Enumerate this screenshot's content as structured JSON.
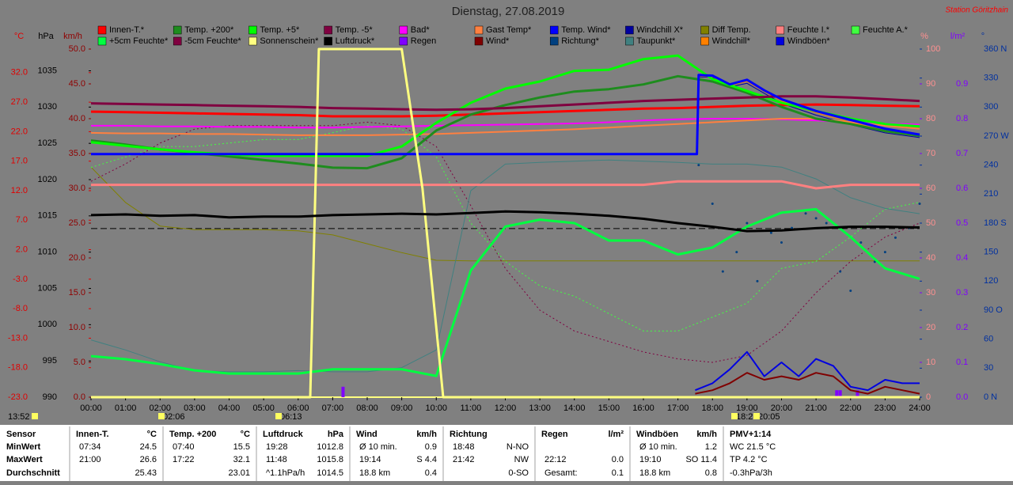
{
  "chart_data": {
    "type": "line",
    "title": "Dienstag, 27.08.2019",
    "station": "Station Göritzhain",
    "x": [
      0,
      1,
      2,
      3,
      4,
      5,
      6,
      7,
      8,
      9,
      10,
      11,
      12,
      13,
      14,
      15,
      16,
      17,
      18,
      19,
      20,
      21,
      22,
      23,
      24
    ],
    "xlim": [
      0,
      24
    ],
    "xticks": [
      {
        "value": 0,
        "label": "00:00"
      },
      {
        "value": 1,
        "label": "01:00"
      },
      {
        "value": 2,
        "label": "02:00"
      },
      {
        "value": 3,
        "label": "03:00"
      },
      {
        "value": 4,
        "label": "04:00"
      },
      {
        "value": 5,
        "label": "05:00"
      },
      {
        "value": 6,
        "label": "06:00"
      },
      {
        "value": 7,
        "label": "07:00"
      },
      {
        "value": 8,
        "label": "08:00"
      },
      {
        "value": 9,
        "label": "09:00"
      },
      {
        "value": 10,
        "label": "10:00"
      },
      {
        "value": 11,
        "label": "11:00"
      },
      {
        "value": 12,
        "label": "12:00"
      },
      {
        "value": 13,
        "label": "13:00"
      },
      {
        "value": 14,
        "label": "14:00"
      },
      {
        "value": 15,
        "label": "15:00"
      },
      {
        "value": 16,
        "label": "16:00"
      },
      {
        "value": 17,
        "label": "17:00"
      },
      {
        "value": 18,
        "label": "18:00"
      },
      {
        "value": 19,
        "label": "19:00"
      },
      {
        "value": 20,
        "label": "20:00"
      },
      {
        "value": 21,
        "label": "21:00"
      },
      {
        "value": 22,
        "label": "22:00"
      },
      {
        "value": 23,
        "label": "23:00"
      },
      {
        "value": 24,
        "label": "24:00"
      }
    ],
    "axes": [
      {
        "unit": "°C",
        "color": "#e00000",
        "lim": [
          -23,
          36
        ],
        "ticks": [
          {
            "value": -23,
            "label": "-23.0"
          },
          {
            "value": -18,
            "label": "-18.0"
          },
          {
            "value": -13,
            "label": "-13.0"
          },
          {
            "value": -8,
            "label": "-8.0"
          },
          {
            "value": -3,
            "label": "-3.0"
          },
          {
            "value": 2,
            "label": "2.0"
          },
          {
            "value": 7,
            "label": "7.0"
          },
          {
            "value": 12,
            "label": "12.0"
          },
          {
            "value": 17,
            "label": "17.0"
          },
          {
            "value": 22,
            "label": "22.0"
          },
          {
            "value": 27,
            "label": "27.0"
          },
          {
            "value": 32,
            "label": "32.0"
          }
        ]
      },
      {
        "unit": "hPa",
        "color": "#000000",
        "lim": [
          990,
          1038
        ],
        "ticks": [
          990,
          995,
          1000,
          1005,
          1010,
          1015,
          1020,
          1025,
          1030,
          1035
        ]
      },
      {
        "unit": "km/h",
        "color": "#900000",
        "lim": [
          0,
          50
        ],
        "ticks": [
          {
            "value": 0,
            "label": "0.0"
          },
          {
            "value": 5,
            "label": "5.0"
          },
          {
            "value": 10,
            "label": "10.0"
          },
          {
            "value": 15,
            "label": "15.0"
          },
          {
            "value": 20,
            "label": "20.0"
          },
          {
            "value": 25,
            "label": "25.0"
          },
          {
            "value": 30,
            "label": "30.0"
          },
          {
            "value": 35,
            "label": "35.0"
          },
          {
            "value": 40,
            "label": "40.0"
          },
          {
            "value": 45,
            "label": "45.0"
          },
          {
            "value": 50,
            "label": "50.0"
          }
        ]
      },
      {
        "unit": "%",
        "color": "#ff9090",
        "lim": [
          0,
          100
        ],
        "ticks": [
          0,
          10,
          20,
          30,
          40,
          50,
          60,
          70,
          80,
          90,
          100
        ]
      },
      {
        "unit": "l/m²",
        "color": "#8000ff",
        "lim": [
          0,
          1
        ],
        "ticks": [
          {
            "value": 0,
            "label": "0.0"
          },
          0.1,
          0.2,
          0.3,
          0.4,
          0.5,
          0.6,
          0.7,
          0.8,
          0.9
        ]
      },
      {
        "unit": "°",
        "color": "#0030a0",
        "lim": [
          0,
          360
        ],
        "ticks": [
          {
            "value": 0,
            "label": "0 N"
          },
          30,
          60,
          {
            "value": 90,
            "label": "90 O"
          },
          120,
          150,
          {
            "value": 180,
            "label": "180 S"
          },
          210,
          240,
          {
            "value": 270,
            "label": "270 W"
          },
          300,
          330,
          {
            "value": 360,
            "label": "360 N"
          }
        ]
      }
    ],
    "pressure_reference": 1013.25,
    "series": [
      {
        "name": "Innen-T.*",
        "color": "#ff0000",
        "axis": 0,
        "width": 3,
        "values": [
          25.4,
          25.3,
          25.2,
          25.1,
          25.0,
          24.9,
          24.8,
          24.6,
          24.6,
          24.6,
          24.7,
          24.9,
          25.1,
          25.3,
          25.5,
          25.7,
          25.9,
          26.0,
          26.2,
          26.4,
          26.5,
          26.6,
          26.5,
          26.4,
          26.3
        ]
      },
      {
        "name": "Temp. +200*",
        "color": "#1e8c1e",
        "axis": 0,
        "width": 3,
        "values": [
          20.5,
          19.8,
          19.0,
          18.4,
          17.8,
          17.2,
          16.6,
          15.9,
          15.8,
          17.5,
          22.2,
          24.9,
          26.5,
          27.8,
          28.8,
          29.2,
          30.0,
          31.4,
          30.5,
          28.6,
          26.2,
          24.2,
          23.3,
          22.1,
          21.3
        ]
      },
      {
        "name": "Temp. +5*",
        "color": "#00ff00",
        "axis": 0,
        "width": 3,
        "values": [
          20.2,
          19.6,
          19.0,
          18.5,
          18.1,
          17.9,
          17.9,
          17.9,
          17.9,
          19.5,
          23.5,
          26.9,
          29.3,
          30.5,
          32.3,
          32.5,
          34.3,
          34.9,
          30.9,
          28.9,
          26.9,
          25.5,
          24.2,
          23.3,
          22.9
        ]
      },
      {
        "name": "Temp. -5*",
        "color": "#800040",
        "axis": 0,
        "width": 3,
        "values": [
          26.8,
          26.7,
          26.6,
          26.5,
          26.4,
          26.3,
          26.2,
          26.0,
          25.9,
          25.8,
          25.7,
          25.8,
          26.0,
          26.3,
          26.6,
          26.9,
          27.2,
          27.4,
          27.6,
          27.8,
          28.0,
          28.0,
          27.8,
          27.5,
          27.2
        ]
      },
      {
        "name": "Bad*",
        "color": "#ff00ff",
        "axis": 0,
        "width": 2,
        "values": [
          23.0,
          23.0,
          22.9,
          22.9,
          22.8,
          22.8,
          22.7,
          22.7,
          22.8,
          22.9,
          23.0,
          23.1,
          23.2,
          23.3,
          23.4,
          23.6,
          23.9,
          24.1,
          24.2,
          24.2,
          24.1,
          23.9,
          23.6,
          23.4,
          23.2
        ]
      },
      {
        "name": "Gast Temp*",
        "color": "#ff8040",
        "axis": 0,
        "width": 2,
        "values": [
          21.8,
          21.7,
          21.7,
          21.6,
          21.6,
          21.5,
          21.4,
          21.4,
          21.4,
          21.5,
          21.6,
          21.8,
          22.0,
          22.2,
          22.4,
          22.7,
          23.0,
          23.3,
          23.6,
          23.9,
          24.2,
          24.2,
          23.6,
          23.0,
          22.5
        ]
      },
      {
        "name": "Temp. Wind*",
        "color": "#0000ff",
        "axis": 0,
        "width": 3,
        "x": [
          0,
          17.55,
          17.6,
          18,
          18.5,
          19,
          19.5,
          20,
          21,
          22,
          23,
          24
        ],
        "values": [
          18.2,
          18.2,
          31.6,
          31.5,
          30.0,
          30.8,
          29.0,
          27.5,
          25.5,
          24.0,
          22.5,
          21.5
        ]
      },
      {
        "name": "Windchill X*",
        "color": "#0000a0",
        "axis": 0,
        "width": 1,
        "x": [
          0,
          17.55,
          17.6,
          18,
          18.5,
          19,
          19.5,
          20,
          21,
          22,
          23,
          24
        ],
        "values": [
          18.1,
          18.1,
          31.3,
          31.2,
          29.6,
          30.2,
          28.5,
          26.8,
          24.8,
          23.2,
          21.8,
          21.0
        ]
      },
      {
        "name": "Diff Temp.",
        "color": "#808000",
        "axis": 0,
        "width": 1,
        "values": [
          16,
          10,
          6,
          5.4,
          5.4,
          5.4,
          5.2,
          4.5,
          3.0,
          1.5,
          0.2,
          0.1,
          0.1,
          0.1,
          0.1,
          0.1,
          0.1,
          0.1,
          0.1,
          0.1,
          0.1,
          0.1,
          0.1,
          0.1,
          0.1
        ]
      },
      {
        "name": "Feuchte I.*",
        "color": "#ff8080",
        "axis": 3,
        "width": 3,
        "values": [
          61,
          61,
          61,
          61,
          61,
          61,
          61,
          61,
          61,
          61,
          61,
          61,
          61,
          61,
          61,
          61,
          61,
          62,
          62,
          62,
          62,
          60,
          61,
          61,
          61
        ]
      },
      {
        "name": "Feuchte A.*",
        "color": "#40ff40",
        "axis": 3,
        "width": 1,
        "style": "dotted",
        "values": [
          66,
          69,
          72,
          72,
          73,
          74,
          74,
          76,
          78,
          77,
          69,
          50,
          39,
          32,
          29,
          24,
          19,
          19,
          23,
          27,
          37,
          39,
          46,
          54,
          56
        ]
      },
      {
        "name": "+5cm Feuchte*",
        "color": "#00ff40",
        "axis": 3,
        "width": 3,
        "values": [
          11.8,
          10.9,
          9.5,
          7.7,
          6.8,
          6.8,
          6.8,
          8.0,
          8.0,
          8.0,
          6.1,
          36.4,
          49,
          51,
          50,
          45,
          45,
          41,
          43,
          49,
          53,
          54,
          46,
          37,
          34
        ]
      },
      {
        "name": "-5cm Feuchte*",
        "color": "#800040",
        "axis": 3,
        "width": 1,
        "style": "dotted",
        "values": [
          62,
          67,
          73,
          77,
          78,
          78,
          78,
          78,
          79,
          78,
          72,
          55,
          37,
          25,
          19,
          16,
          13,
          11,
          10,
          12,
          19,
          30,
          39,
          46,
          50
        ]
      },
      {
        "name": "Sonnenschein*",
        "color": "#ffff80",
        "axis": 3,
        "width": 3,
        "x": [
          0,
          6.35,
          6.6,
          9.0,
          9.6,
          10.2,
          24
        ],
        "values": [
          0,
          0,
          100,
          100,
          60,
          0,
          0
        ]
      },
      {
        "name": "Luftdruck*",
        "color": "#000000",
        "axis": 1,
        "width": 3,
        "values": [
          1015.1,
          1015.2,
          1015.0,
          1015.1,
          1014.8,
          1014.9,
          1014.9,
          1015.1,
          1015.2,
          1015.3,
          1015.2,
          1015.4,
          1015.6,
          1015.5,
          1015.3,
          1015.0,
          1014.6,
          1014.0,
          1013.5,
          1012.9,
          1013.0,
          1013.3,
          1013.5,
          1013.5,
          1013.4
        ]
      },
      {
        "name": "Regen",
        "color": "#8000ff",
        "axis": 4,
        "style": "bars",
        "x": [
          7.3,
          21.6,
          21.7,
          22.2
        ],
        "values": [
          0.03,
          0.02,
          0.02,
          0.02
        ]
      },
      {
        "name": "Wind*",
        "color": "#800000",
        "axis": 2,
        "width": 2,
        "x": [
          17.5,
          18,
          18.5,
          19,
          19.5,
          20,
          20.5,
          21,
          21.5,
          22,
          22.5,
          23,
          23.5,
          24
        ],
        "values": [
          0.5,
          1,
          2,
          3.5,
          2.5,
          3,
          2.5,
          3.5,
          3,
          1,
          0.5,
          1.5,
          1,
          0.5
        ]
      },
      {
        "name": "Richtung*",
        "color": "#004080",
        "axis": 5,
        "style": "dots",
        "x": [
          17.6,
          18,
          18.3,
          18.7,
          19,
          19.3,
          19.7,
          20,
          20.3,
          20.7,
          21,
          21.3,
          21.7,
          22,
          22.3,
          22.7,
          23,
          23.3,
          23.7,
          24
        ],
        "values": [
          240,
          200,
          130,
          150,
          180,
          120,
          170,
          160,
          175,
          190,
          185,
          180,
          130,
          110,
          160,
          140,
          150,
          165,
          175,
          200
        ]
      },
      {
        "name": "Taupunkt*",
        "color": "#408080",
        "axis": 0,
        "width": 1,
        "values": [
          -13.3,
          -15,
          -17,
          -18.5,
          -18.7,
          -18.7,
          -18.5,
          -18.7,
          -18.7,
          -18,
          -15,
          12,
          16.5,
          16.8,
          17.0,
          17.2,
          17.0,
          16.8,
          16.5,
          16.5,
          16.0,
          14,
          10.8,
          9,
          8.1
        ]
      },
      {
        "name": "Windchill*",
        "color": "#ff8000",
        "axis": 0,
        "width": 1,
        "x": [
          0,
          17.55,
          17.6,
          18,
          18.5,
          19,
          19.5,
          20,
          21,
          22,
          23,
          24
        ],
        "values": [
          18.2,
          18.2,
          31.4,
          31.3,
          29.8,
          30.5,
          28.8,
          27.2,
          25.2,
          23.6,
          22.2,
          21.3
        ]
      },
      {
        "name": "Windböen*",
        "color": "#0000e0",
        "axis": 2,
        "width": 2,
        "x": [
          17.5,
          18,
          18.5,
          19,
          19.5,
          20,
          20.5,
          21,
          21.5,
          22,
          22.5,
          23,
          23.5,
          24
        ],
        "values": [
          1,
          2,
          4,
          6.5,
          3,
          5,
          3,
          5.5,
          4.5,
          1.5,
          1,
          2.5,
          2,
          2
        ]
      }
    ],
    "markers": [
      "13:52",
      "02:06",
      "06:13",
      "18:21",
      "20:05"
    ]
  },
  "table": {
    "columns": [
      {
        "title": "Sensor",
        "rows": [
          "MinWert",
          "MaxWert",
          "Durchschnitt"
        ]
      },
      {
        "title": "Innen-T.",
        "unit": "°C",
        "cells": [
          [
            "07:34",
            "24.5"
          ],
          [
            "21:00",
            "26.6"
          ],
          [
            "25.43"
          ]
        ]
      },
      {
        "title": "Temp. +200",
        "unit": "°C",
        "cells": [
          [
            "07:40",
            "15.5"
          ],
          [
            "17:22",
            "32.1"
          ],
          [
            "23.01"
          ]
        ]
      },
      {
        "title": "Luftdruck",
        "unit": "hPa",
        "cells": [
          [
            "19:28",
            "1012.8"
          ],
          [
            "11:48",
            "1015.8"
          ],
          [
            "^1.1hPa/h",
            "1014.5"
          ]
        ]
      },
      {
        "title": "Wind",
        "unit": "km/h",
        "cells": [
          [
            "Ø 10 min.",
            "0.9"
          ],
          [
            "19:14",
            "S 4.4"
          ],
          [
            "18.8 km",
            "0.4"
          ]
        ]
      },
      {
        "title": "Richtung",
        "cells": [
          [
            "18:48",
            "N-NO"
          ],
          [
            "21:42",
            "NW"
          ],
          [
            "0-SO"
          ]
        ]
      },
      {
        "title": "Regen",
        "unit": "l/m²",
        "cells": [
          [],
          [
            "22:12",
            "0.0"
          ],
          [
            "Gesamt:",
            "0.1"
          ]
        ]
      },
      {
        "title": "Windböen",
        "unit": "km/h",
        "cells": [
          [
            "Ø 10 min.",
            "1.2"
          ],
          [
            "19:10",
            "SO 11.4"
          ],
          [
            "18.8 km",
            "0.8"
          ]
        ]
      },
      {
        "title": "PMV+1:14",
        "align": "left",
        "cells": [
          [
            "WC 21.5 °C"
          ],
          [
            "TP 4.2 °C"
          ],
          [
            "-0.3hPa/3h"
          ]
        ]
      }
    ]
  }
}
